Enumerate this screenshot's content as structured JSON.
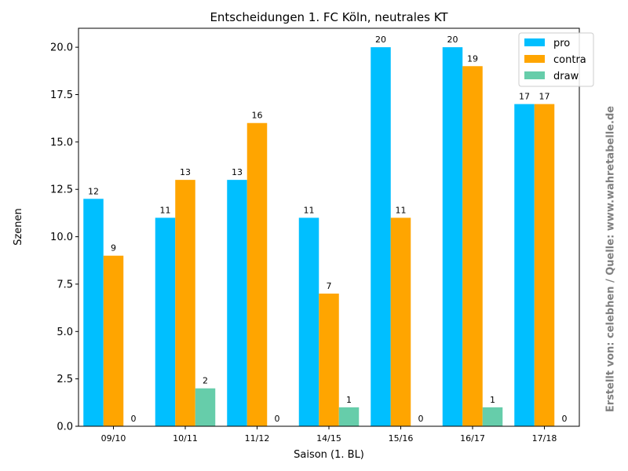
{
  "chart_data": {
    "type": "bar",
    "title": "Entscheidungen 1. FC Köln, neutrales KT",
    "xlabel": "Saison (1. BL)",
    "ylabel": "Szenen",
    "categories": [
      "09/10",
      "10/11",
      "11/12",
      "14/15",
      "15/16",
      "16/17",
      "17/18"
    ],
    "series": [
      {
        "name": "pro",
        "color": "#00bfff",
        "values": [
          12,
          11,
          13,
          11,
          20,
          20,
          17
        ]
      },
      {
        "name": "contra",
        "color": "#ffa500",
        "values": [
          9,
          13,
          16,
          7,
          11,
          19,
          17
        ]
      },
      {
        "name": "draw",
        "color": "#66cdaa",
        "values": [
          0,
          2,
          0,
          1,
          0,
          1,
          0
        ]
      }
    ],
    "ylim": [
      0,
      21
    ],
    "yticks": [
      "0.0",
      "2.5",
      "5.0",
      "7.5",
      "10.0",
      "12.5",
      "15.0",
      "17.5",
      "20.0"
    ],
    "grid": false,
    "legend": "top-right"
  },
  "credit": "Erstellt von: celebhen / Quelle: www.wahretabelle.de"
}
